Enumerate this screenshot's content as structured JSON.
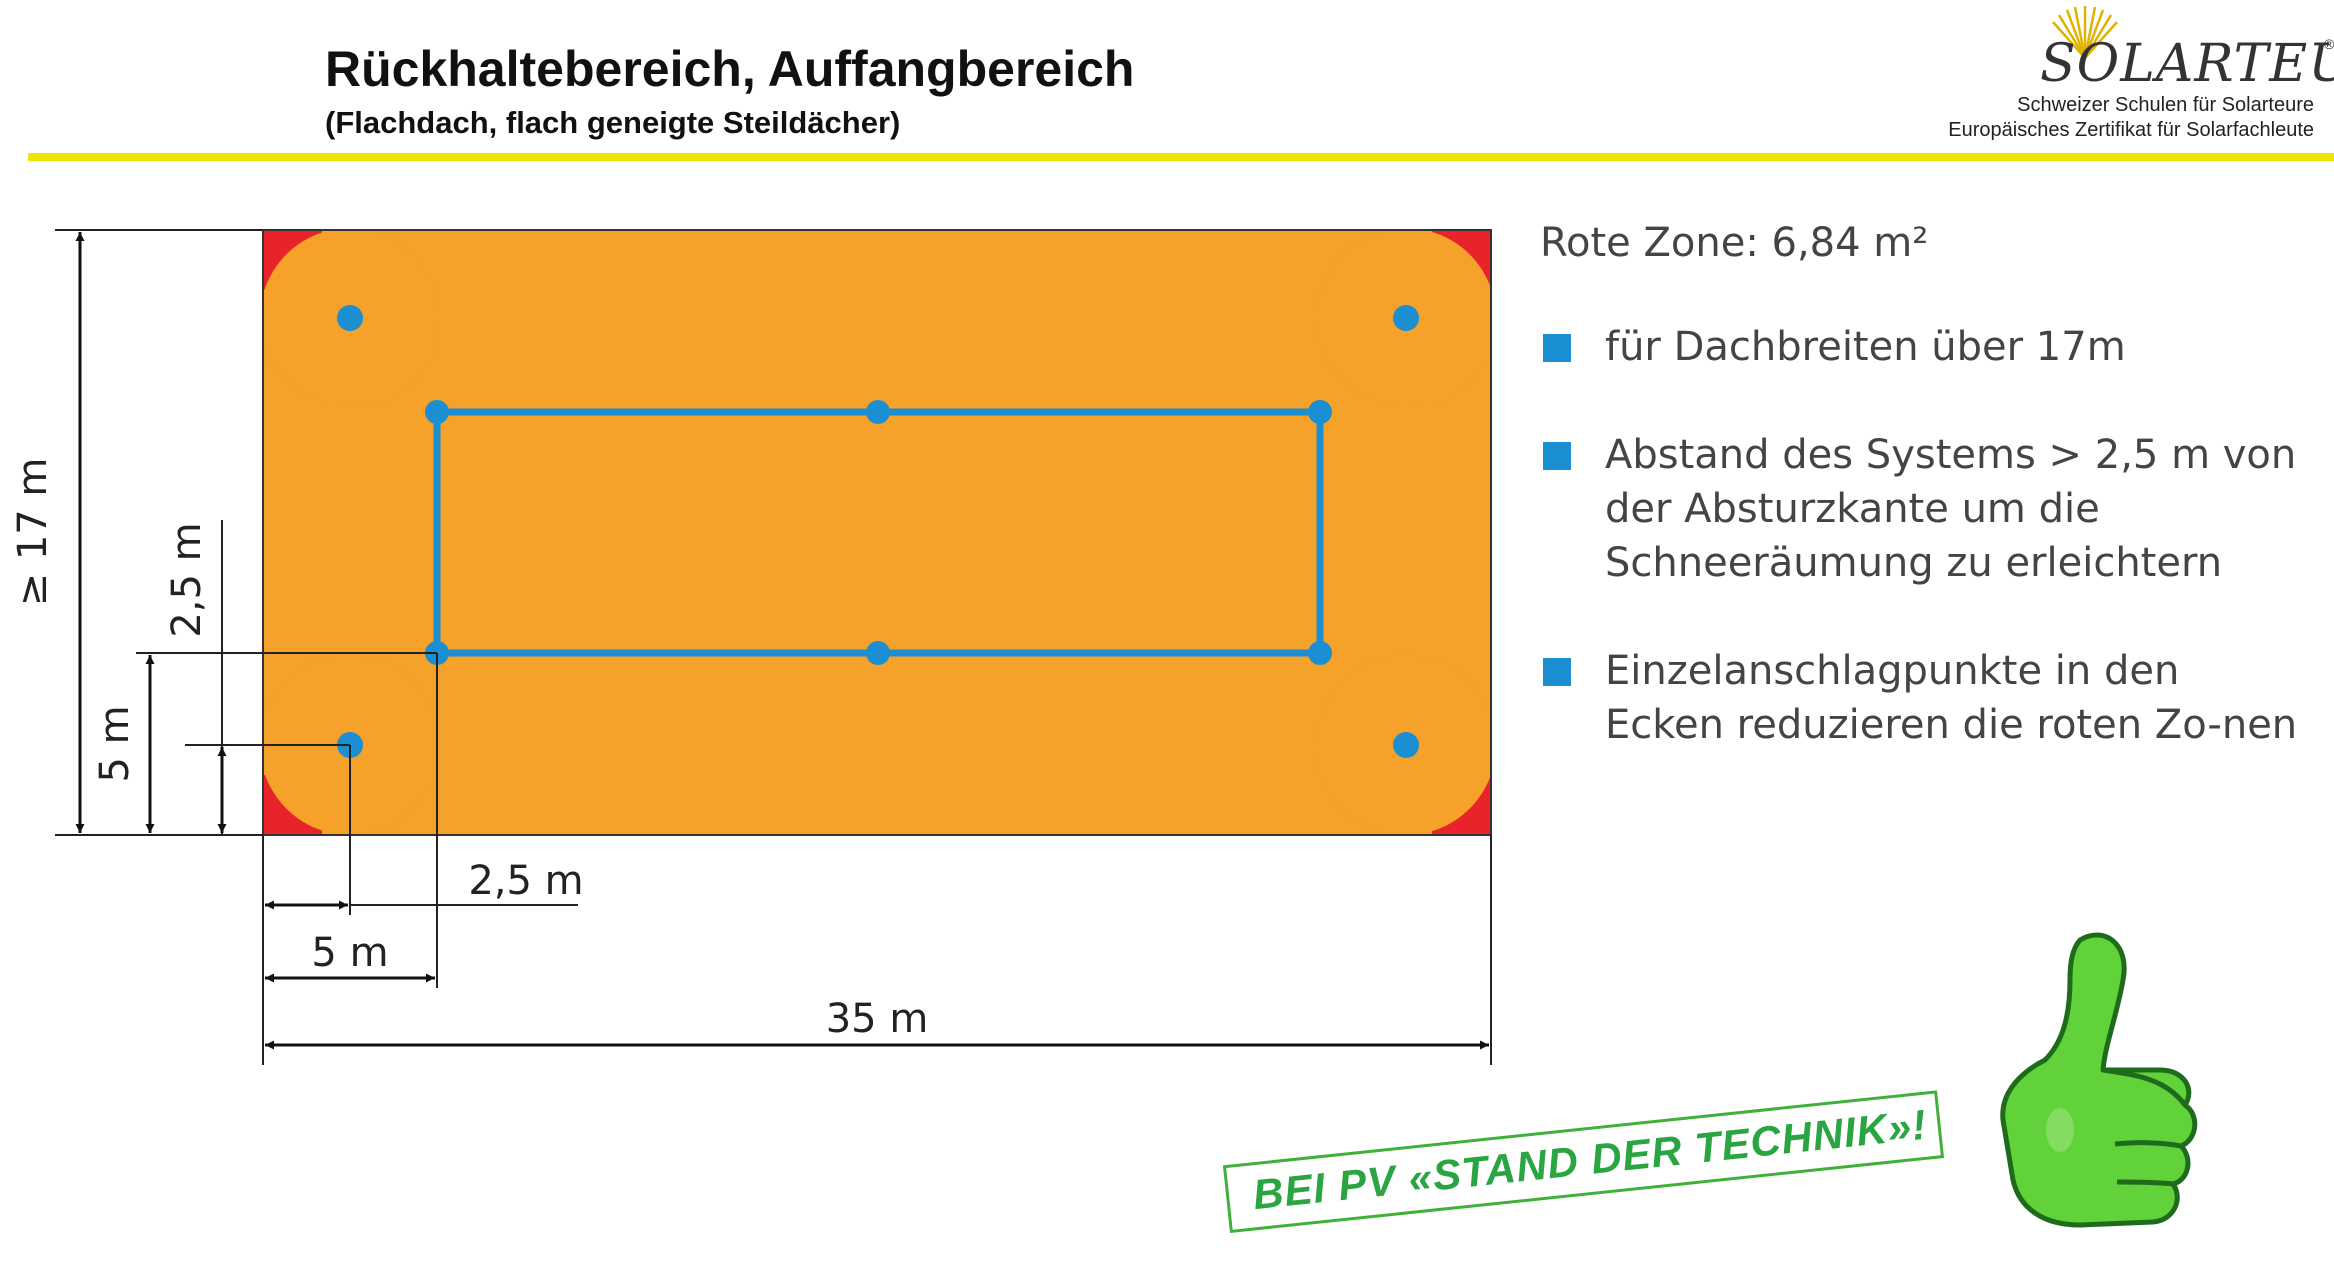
{
  "header": {
    "title": "Rückhaltebereich, Auffangbereich",
    "subtitle": "(Flachdach, flach geneigte Steildächer)"
  },
  "logo": {
    "wordmark": "SOLARTEUR",
    "registered": "®",
    "line1": "Schweizer Schulen für Solarteure",
    "line2": "Europäisches Zertifikat für Solarfachleute"
  },
  "diagram": {
    "dimensions": {
      "height_total": "≥ 17 m",
      "height_offset_outer": "5 m",
      "height_offset_inner": "2,5 m",
      "width_offset_inner": "2,5 m",
      "width_offset_outer": "5 m",
      "width_total": "35 m"
    },
    "colors": {
      "red_zone": "#e8242a",
      "catch_area": "#f5a12a",
      "system_line": "#1b8fd2",
      "anchor_point": "#1b8fd2"
    }
  },
  "info": {
    "heading": "Rote Zone: 6,84 m²",
    "bullets": [
      "für Dachbreiten über 17m",
      "Abstand des Systems > 2,5 m von der Absturzkante um die Schneeräumung zu erleichtern",
      "Einzelanschlagpunkte in den Ecken reduzieren die roten Zo-nen"
    ],
    "bullet_color": "#1b8fd2"
  },
  "stamp": {
    "text": "BEI PV «STAND DER TECHNIK»!",
    "color": "#2aa542"
  },
  "icons": {
    "thumb": "thumbs-up-icon",
    "logo_sun": "sun-icon"
  }
}
